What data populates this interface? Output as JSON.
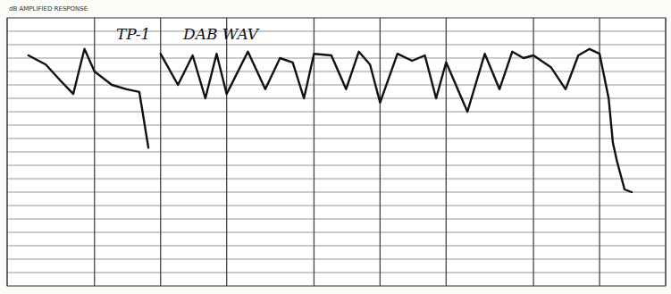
{
  "chart_data": {
    "type": "line",
    "subtitle": "dB AMPLIFIED RESPONSE",
    "annotations": [
      "TP-1",
      "DAB WAV"
    ],
    "x": [
      25,
      30,
      35,
      40,
      45,
      50,
      60,
      70,
      80,
      88,
      92,
      100,
      120,
      140,
      160,
      180,
      200,
      250,
      300,
      350,
      400,
      450,
      500,
      600,
      700,
      800,
      900,
      1000,
      1200,
      1400,
      1600,
      1800,
      2000,
      2500,
      3000,
      3500,
      4000,
      4500,
      5000,
      6000,
      7000,
      8000,
      9000,
      10000,
      11000,
      11500,
      12000,
      13000,
      14000
    ],
    "values": [
      -7,
      -8.7,
      -11.7,
      -14.2,
      -5.8,
      -10,
      -12.5,
      -13.3,
      -13.8,
      -24.2,
      null,
      -6.7,
      -12.5,
      -7,
      -15,
      -6.7,
      -14.2,
      -6.3,
      -13.3,
      -7.5,
      -8.3,
      -15,
      -6.7,
      -7,
      -13.3,
      -6.3,
      -8.7,
      -15.8,
      -6.7,
      -8,
      -7,
      -15,
      -8.3,
      -17.5,
      -6.7,
      -13.3,
      -6.3,
      -7.5,
      -7,
      -9.2,
      -13.3,
      -7,
      -5.8,
      -6.7,
      -15,
      -23.3,
      -26.7,
      -32,
      -32.5
    ],
    "color": "#111111",
    "xlim": [
      20,
      20000
    ],
    "ylim": [
      -50,
      0
    ],
    "xticks": [
      20,
      50,
      100,
      200,
      500,
      1000,
      2000,
      5000,
      10000,
      20000
    ],
    "yticks": [
      -50,
      -47.5,
      -45,
      -42.5,
      -40,
      -37.5,
      -35,
      -32.5,
      -30,
      -27.5,
      -25,
      -22.5,
      -20,
      -17.5,
      -15,
      -12.5,
      -10,
      -7.5,
      -5,
      -2.5,
      0
    ],
    "log": "x",
    "grid": true,
    "tick_labels": false
  }
}
